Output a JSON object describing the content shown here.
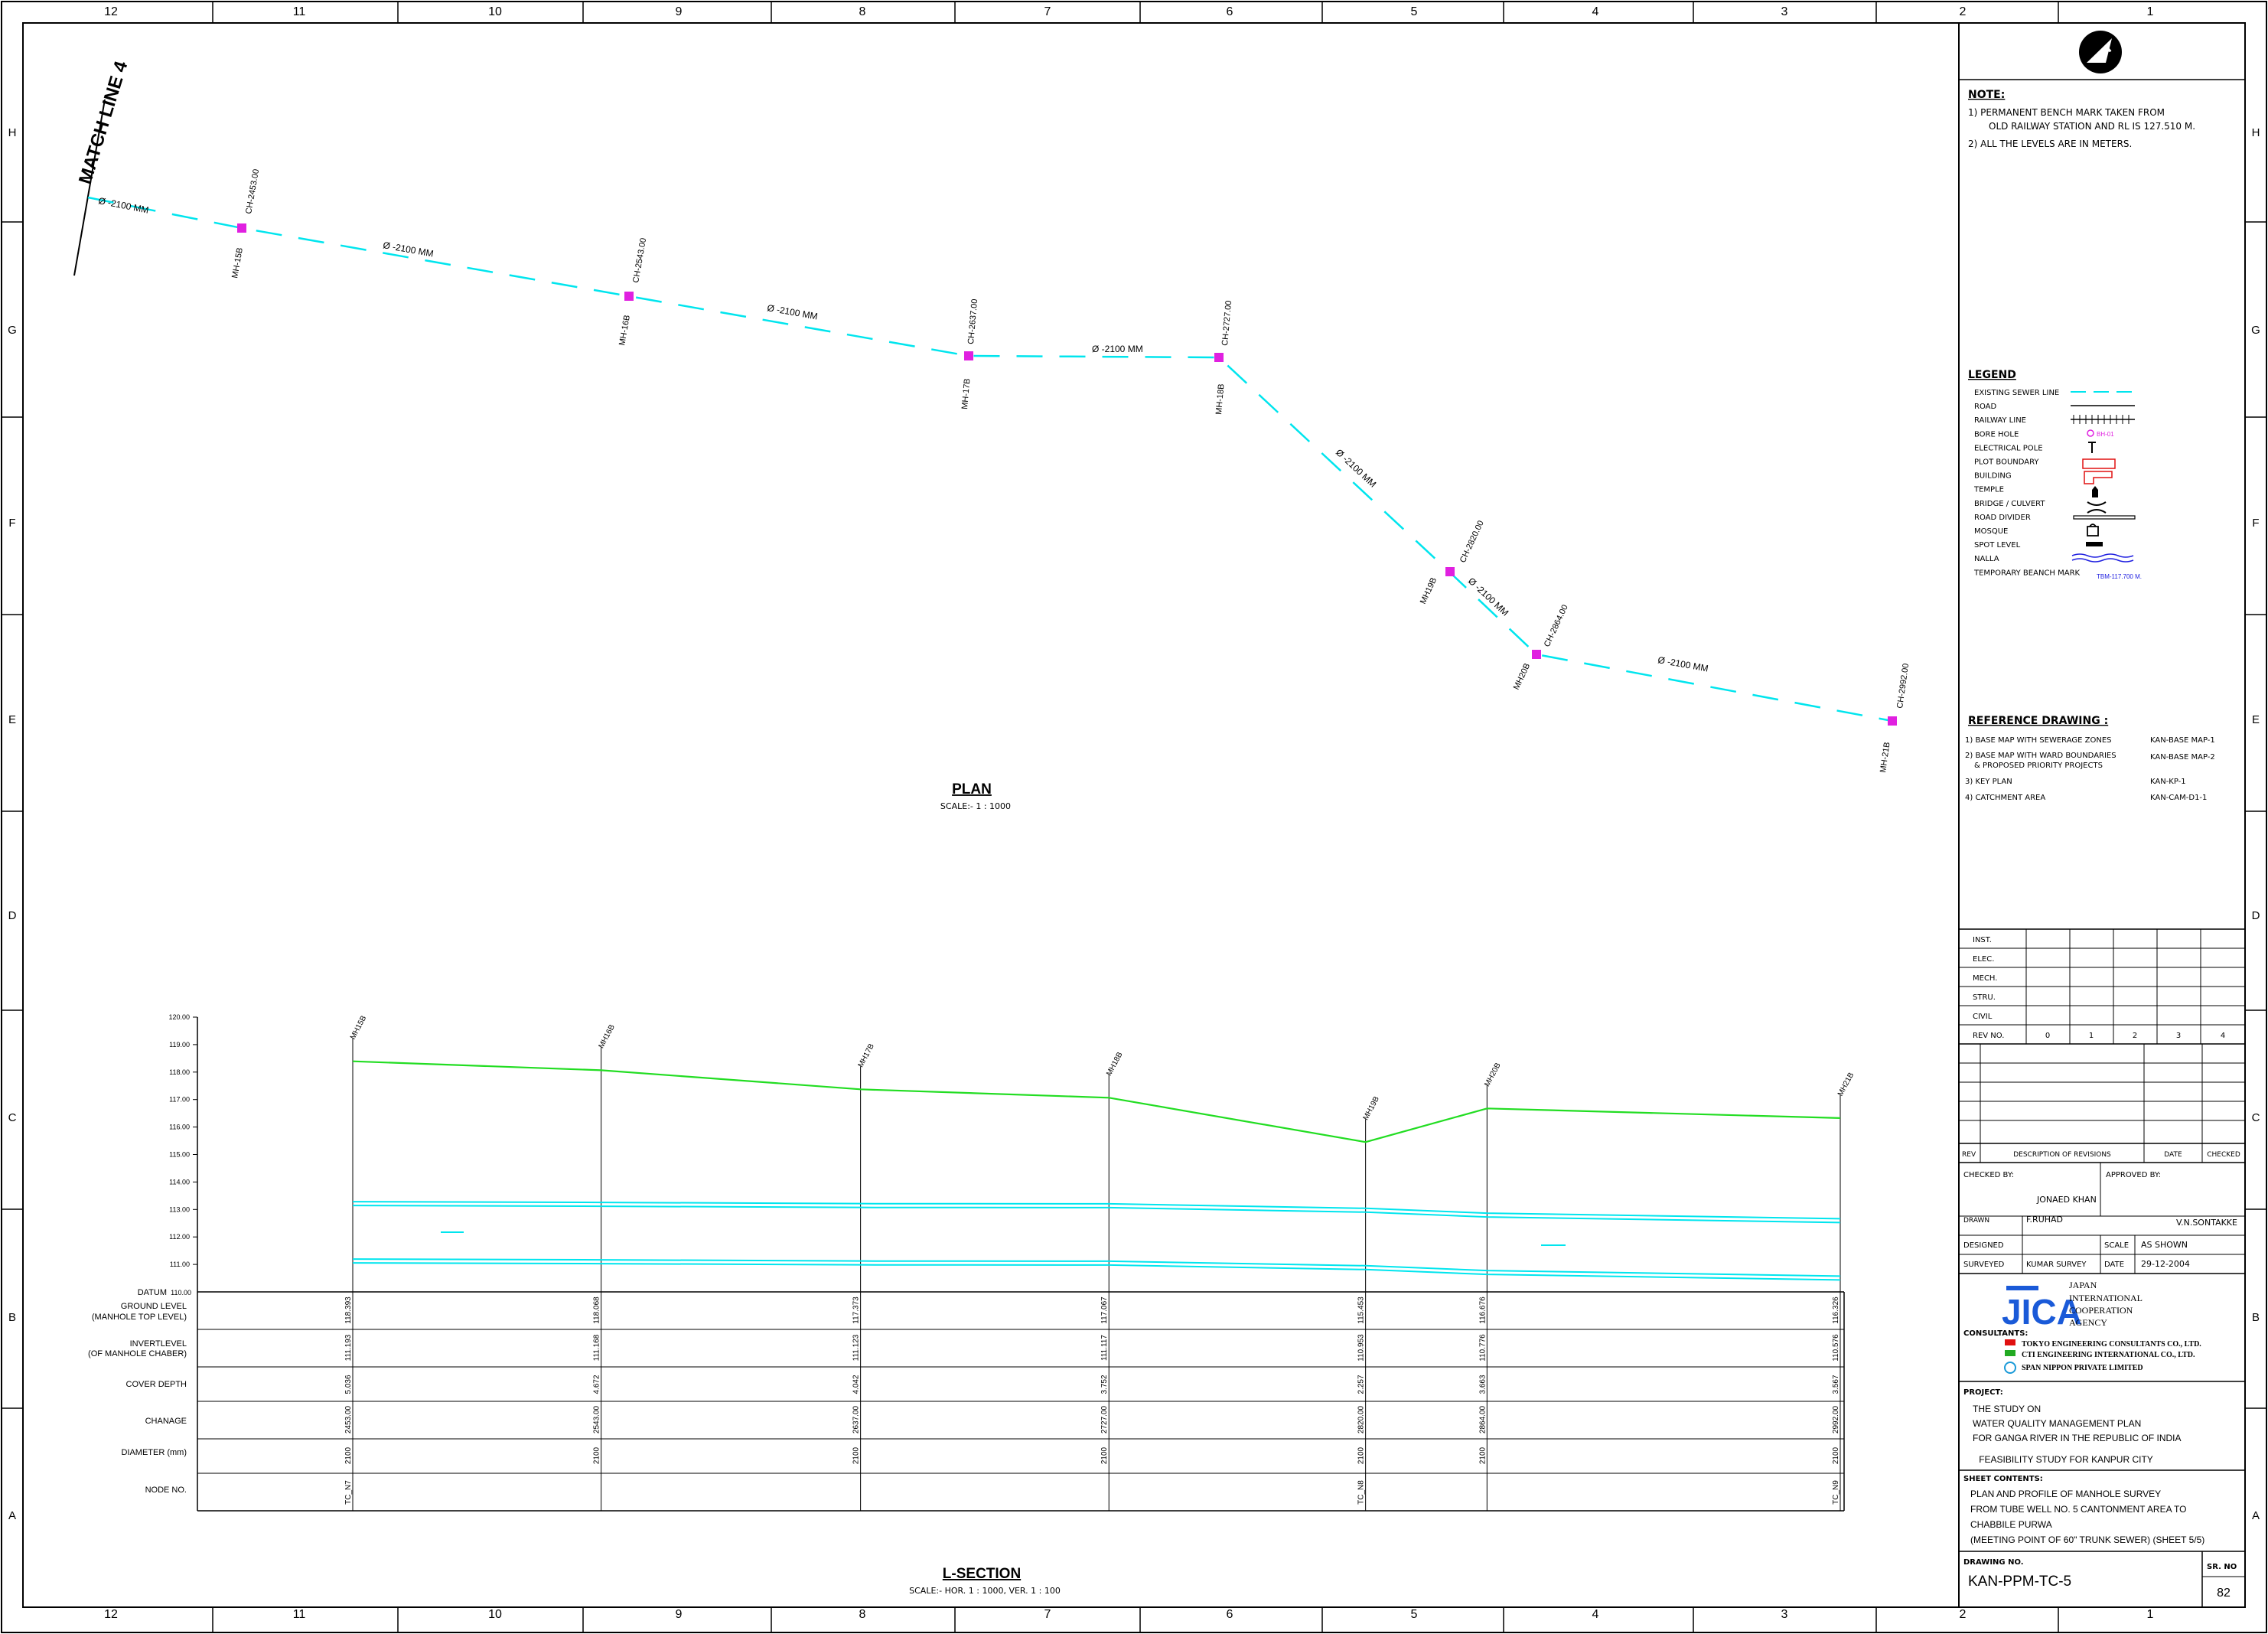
{
  "grid": {
    "columns": [
      "12",
      "11",
      "10",
      "9",
      "8",
      "7",
      "6",
      "5",
      "4",
      "3",
      "2",
      "1"
    ],
    "rows": [
      "H",
      "G",
      "F",
      "E",
      "D",
      "C",
      "B",
      "A"
    ]
  },
  "plan": {
    "title": "PLAN",
    "scale": "SCALE:- 1 : 1000",
    "match_line": "MATCH LINE 4",
    "pipe_labels": [
      "Ø -2100 MM",
      "Ø -2100 MM",
      "Ø -2100 MM",
      "Ø -2100 MM",
      "Ø -2100 MM",
      "Ø -2100 MM",
      "Ø -2100 MM"
    ],
    "manholes": [
      {
        "id": "MH-15B",
        "chainage": "CH-2453.00"
      },
      {
        "id": "MH-16B",
        "chainage": "CH-2543.00"
      },
      {
        "id": "MH-17B",
        "chainage": "CH-2637.00"
      },
      {
        "id": "MH-18B",
        "chainage": "CH-2727.00"
      },
      {
        "id": "MH19B",
        "chainage": "CH-2820.00"
      },
      {
        "id": "MH20B",
        "chainage": "CH-2864.00"
      },
      {
        "id": "MH-21B",
        "chainage": "CH-2992.00"
      }
    ]
  },
  "section": {
    "title": "L-SECTION",
    "scale": "SCALE:- HOR. 1 : 1000, VER. 1 : 100",
    "datum": "DATUM",
    "datum_value": "110.00",
    "y_ticks": [
      "120.00",
      "119.00",
      "118.00",
      "117.00",
      "116.00",
      "115.00",
      "114.00",
      "113.00",
      "112.00",
      "111.00"
    ],
    "row_labels": {
      "ground_1": "GROUND LEVEL",
      "ground_2": "(MANHOLE TOP LEVEL)",
      "invert_1": "INVERTLEVEL",
      "invert_2": "(OF MANHOLE CHABER)",
      "cover": "COVER DEPTH",
      "chainage": "CHANAGE",
      "diameter": "DIAMETER (mm)",
      "node": "NODE NO."
    },
    "stations": [
      {
        "mh": "MH15B",
        "ground": "118.393",
        "invert": "111.193",
        "cover": "5.036",
        "chainage": "2453.00",
        "diameter": "2100",
        "node": "TC_N7"
      },
      {
        "mh": "MH16B",
        "ground": "118.068",
        "invert": "111.168",
        "cover": "4.672",
        "chainage": "2543.00",
        "diameter": "2100",
        "node": ""
      },
      {
        "mh": "MH17B",
        "ground": "117.373",
        "invert": "111.123",
        "cover": "4.042",
        "chainage": "2637.00",
        "diameter": "2100",
        "node": ""
      },
      {
        "mh": "MH18B",
        "ground": "117.067",
        "invert": "111.117",
        "cover": "3.752",
        "chainage": "2727.00",
        "diameter": "2100",
        "node": ""
      },
      {
        "mh": "MH19B",
        "ground": "115.453",
        "invert": "110.953",
        "cover": "2.257",
        "chainage": "2820.00",
        "diameter": "2100",
        "node": "TC_N8"
      },
      {
        "mh": "MH20B",
        "ground": "116.676",
        "invert": "110.776",
        "cover": "3.663",
        "chainage": "2864.00",
        "diameter": "2100",
        "node": ""
      },
      {
        "mh": "MH21B",
        "ground": "116.326",
        "invert": "110.576",
        "cover": "3.567",
        "chainage": "2992.00",
        "diameter": "2100",
        "node": "TC_N9"
      }
    ]
  },
  "notes": {
    "heading": "NOTE:",
    "line1a": "1)  PERMANENT BENCH MARK TAKEN FROM",
    "line1b": "OLD RAILWAY STATION AND RL IS 127.510 M.",
    "line2": "2)  ALL THE LEVELS ARE IN METERS."
  },
  "legend": {
    "heading": "LEGEND",
    "items": [
      "EXISTING SEWER LINE",
      "ROAD",
      "RAILWAY LINE",
      "BORE HOLE",
      "ELECTRICAL POLE",
      "PLOT BOUNDARY",
      "BUILDING",
      "TEMPLE",
      "BRIDGE / CULVERT",
      "ROAD DIVIDER",
      "MOSQUE",
      "SPOT LEVEL",
      "NALLA",
      "TEMPORARY BEANCH MARK"
    ],
    "bore_hole_tag": "BH-01",
    "tbm_tag": "TBM-117.700 M."
  },
  "reference": {
    "heading": "REFERENCE DRAWING :",
    "items": [
      {
        "text": "1) BASE MAP WITH SEWERAGE ZONES",
        "code": "KAN-BASE MAP-1"
      },
      {
        "text": "2) BASE MAP WITH WARD BOUNDARIES",
        "text2": "& PROPOSED PRIORITY PROJECTS",
        "code": "KAN-BASE MAP-2"
      },
      {
        "text": "3) KEY PLAN",
        "code": "KAN-KP-1"
      },
      {
        "text": "4) CATCHMENT AREA",
        "code": "KAN-CAM-D1-1"
      }
    ]
  },
  "revisions": {
    "disciplines": [
      "INST.",
      "ELEC.",
      "MECH.",
      "STRU.",
      "CIVIL"
    ],
    "rev_no_label": "REV NO.",
    "rev_nos": [
      "0",
      "1",
      "2",
      "3",
      "4"
    ],
    "hdr_rev": "REV",
    "hdr_desc": "DESCRIPTION OF REVISIONS",
    "hdr_date": "DATE",
    "hdr_checked": "CHECKED"
  },
  "titleblock": {
    "checked_by": "CHECKED BY:",
    "approved_by": "APPROVED BY:",
    "checker": "JONAED KHAN",
    "approver": "V.N.SONTAKKE",
    "drawn": "DRAWN",
    "drawn_by": "F.RUHAD",
    "designed": "DESIGNED",
    "scale_label": "SCALE",
    "scale_value": "AS SHOWN",
    "surveyed": "SURVEYED",
    "surveyor": "KUMAR SURVEY",
    "date_label": "DATE",
    "date_value": "29-12-2004",
    "jica_logo": "JICA",
    "agency1": "JAPAN",
    "agency2": "INTERNATIONAL",
    "agency3": "COOPERATION",
    "agency4": "AGENCY",
    "consultants": "CONSULTANTS:",
    "cons1": "TOKYO ENGINEERING CONSULTANTS CO., LTD.",
    "cons2": "CTI ENGINEERING INTERNATIONAL CO., LTD.",
    "cons3": "SPAN NIPPON PRIVATE LIMITED",
    "project": "PROJECT:",
    "proj1": "THE STUDY ON",
    "proj2": "WATER QUALITY MANAGEMENT PLAN",
    "proj3": "FOR GANGA RIVER IN THE REPUBLIC OF INDIA",
    "proj4": "FEASIBILITY STUDY FOR KANPUR CITY",
    "sheet": "SHEET CONTENTS:",
    "sheet1": "PLAN AND PROFILE OF MANHOLE SURVEY",
    "sheet2": "FROM TUBE WELL NO. 5 CANTONMENT AREA TO",
    "sheet3": "CHABBILE PURWA",
    "sheet4": "(MEETING POINT OF 60\" TRUNK SEWER) (SHEET 5/5)",
    "drawing_no_label": "DRAWING NO.",
    "drawing_no": "KAN-PPM-TC-5",
    "sr_label": "SR. NO",
    "sr_no": "82",
    "north": "N"
  },
  "colors": {
    "pipe": "#00e5ee",
    "ground": "#22dd22",
    "manhole": "#e020e0",
    "legend_red": "#e01010",
    "legend_blue": "#2020e0"
  }
}
